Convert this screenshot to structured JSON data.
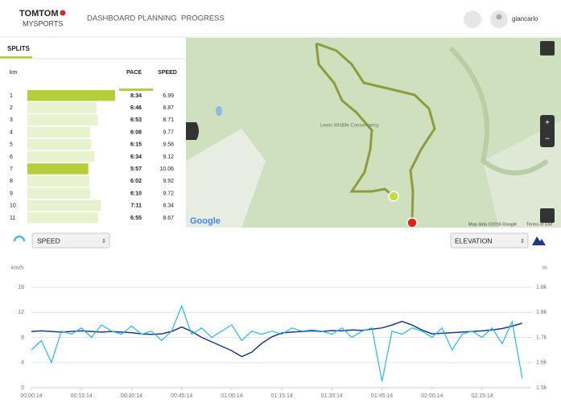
{
  "header": {
    "logo": "TOMTOM",
    "product": "MYSPORTS",
    "nav": [
      "DASHBOARD",
      "PLANNING",
      "PROGRESS"
    ],
    "user": "giancarlo"
  },
  "splits": {
    "title": "SPLITS",
    "columns": [
      "km",
      "PACE",
      "SPEED"
    ],
    "rows": [
      {
        "km": 1,
        "pace": "8:34",
        "speed": 6.99,
        "highlight": true
      },
      {
        "km": 2,
        "pace": "6:46",
        "speed": 8.87,
        "highlight": false
      },
      {
        "km": 3,
        "pace": "6:53",
        "speed": 8.71,
        "highlight": false
      },
      {
        "km": 4,
        "pace": "6:08",
        "speed": 9.77,
        "highlight": false
      },
      {
        "km": 5,
        "pace": "6:15",
        "speed": 9.58,
        "highlight": false
      },
      {
        "km": 6,
        "pace": "6:34",
        "speed": 9.12,
        "highlight": false
      },
      {
        "km": 7,
        "pace": "5:57",
        "speed": 10.06,
        "highlight": true
      },
      {
        "km": 8,
        "pace": "6:02",
        "speed": 9.92,
        "highlight": false
      },
      {
        "km": 9,
        "pace": "6:10",
        "speed": 9.72,
        "highlight": false
      },
      {
        "km": 10,
        "pace": "7:11",
        "speed": 8.34,
        "highlight": false
      },
      {
        "km": 11,
        "pace": "6:55",
        "speed": 8.67,
        "highlight": false
      }
    ]
  },
  "map": {
    "place": "Lewis Wildlife Conservancy",
    "attribution": "Map data ©2016 Google",
    "terms": "Terms of Use",
    "logo": "Google"
  },
  "chart_data": {
    "type": "line",
    "y_label": "km/h",
    "y2_label": "m",
    "x": [
      14,
      194,
      374,
      554,
      734,
      914,
      1094,
      1274,
      1454,
      1634,
      1814,
      1994,
      2174,
      2354,
      2534,
      2714,
      2894,
      3074,
      3254,
      3434,
      3614,
      3794,
      3974,
      4154,
      4334,
      4514,
      4694,
      4874,
      5054,
      5234,
      5414,
      5594,
      5774,
      5954,
      6134,
      6314,
      6494,
      6674,
      6854,
      7034,
      7214,
      7394,
      7574,
      7754,
      7934,
      8114,
      8294,
      8474,
      8654,
      8834
    ],
    "xlim": [
      14,
      8952
    ],
    "xticks": [
      {
        "value": 14,
        "label": "00:00:14"
      },
      {
        "value": 914,
        "label": "00:15:14"
      },
      {
        "value": 1814,
        "label": "00:30:14"
      },
      {
        "value": 2714,
        "label": "00:45:14"
      },
      {
        "value": 3614,
        "label": "01:00:14"
      },
      {
        "value": 4514,
        "label": "01:15:14"
      },
      {
        "value": 5414,
        "label": "01:30:14"
      },
      {
        "value": 6314,
        "label": "01:45:14"
      },
      {
        "value": 7214,
        "label": "02:00:14"
      },
      {
        "value": 8114,
        "label": "02:15:14"
      }
    ],
    "ylim": [
      0,
      16
    ],
    "yticks": [
      0,
      4,
      8,
      12,
      16
    ],
    "y2lim": [
      1500,
      1840
    ],
    "y2ticks": [
      {
        "value": 1500,
        "label": "1.5k"
      },
      {
        "value": 1585,
        "label": "1.6k"
      },
      {
        "value": 1670,
        "label": "1.7k"
      },
      {
        "value": 1755,
        "label": "1.8k"
      },
      {
        "value": 1840,
        "label": "1.8k"
      }
    ],
    "grid": true,
    "series": [
      {
        "name": "SPEED",
        "color": "#22b8ee",
        "values": [
          6,
          7.5,
          4,
          9,
          8.5,
          9.5,
          8,
          10,
          9,
          8.5,
          9.8,
          8.5,
          9,
          7.5,
          9,
          13,
          8.5,
          9.5,
          8,
          9,
          10,
          7.5,
          9,
          8.5,
          9,
          8.5,
          9.5,
          9,
          9.2,
          9,
          8.5,
          9.5,
          8,
          9,
          9.5,
          1,
          9,
          8.5,
          9.5,
          9,
          8,
          9.5,
          6,
          8.5,
          9,
          8,
          9.5,
          7,
          10.5,
          1.5
        ]
      },
      {
        "name": "ELEVATION",
        "color": "#1c3a8a",
        "axis": "y2",
        "values": [
          1690,
          1692,
          1690,
          1688,
          1690,
          1692,
          1690,
          1688,
          1690,
          1688,
          1686,
          1682,
          1680,
          1682,
          1690,
          1705,
          1690,
          1670,
          1655,
          1640,
          1625,
          1605,
          1620,
          1650,
          1672,
          1685,
          1688,
          1690,
          1692,
          1690,
          1693,
          1692,
          1695,
          1694,
          1698,
          1702,
          1712,
          1724,
          1712,
          1695,
          1682,
          1684,
          1686,
          1688,
          1690,
          1692,
          1695,
          1700,
          1708,
          1718
        ]
      }
    ]
  }
}
